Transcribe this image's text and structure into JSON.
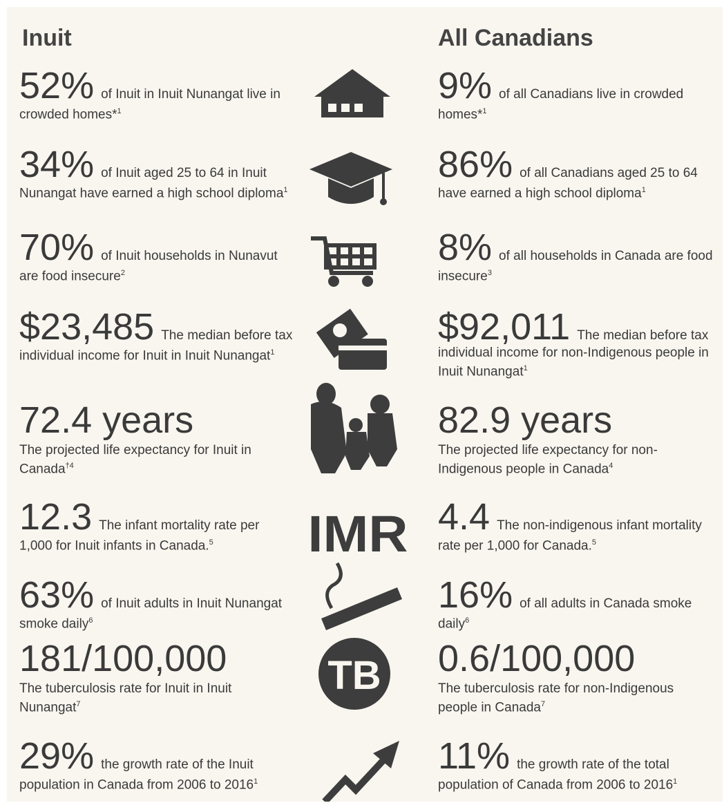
{
  "headers": {
    "left": "Inuit",
    "right": "All Canadians"
  },
  "icons": {
    "imr": "IMR",
    "tb": "TB"
  },
  "rows": [
    {
      "left": {
        "big": "52%",
        "text": "of Inuit in Inuit Nunangat live in crowded homes*",
        "note": "1"
      },
      "right": {
        "big": "9%",
        "text": "of all Canadians live in crowded homes*",
        "note": "1"
      }
    },
    {
      "left": {
        "big": "34%",
        "text": "of Inuit aged 25 to 64 in Inuit Nunangat have earned a high school diploma",
        "note": "1"
      },
      "right": {
        "big": "86%",
        "text": "of all Canadians aged 25 to 64 have earned a high school diploma",
        "note": "1"
      }
    },
    {
      "left": {
        "big": "70%",
        "text": "of Inuit households in Nunavut are food insecure",
        "note": "2"
      },
      "right": {
        "big": "8%",
        "text": "of all households in Canada are food insecure",
        "note": "3"
      }
    },
    {
      "left": {
        "big": "$23,485",
        "text": "The median before tax individual income for Inuit in Inuit Nunangat",
        "note": "1"
      },
      "right": {
        "big": "$92,011",
        "text": "The median before tax individual income for non-Indigenous people in Inuit Nunangat",
        "note": "1"
      }
    },
    {
      "left": {
        "big": "72.4 years",
        "text": "The projected life expectancy for Inuit in Canada",
        "note": "†4"
      },
      "right": {
        "big": "82.9 years",
        "text": "The projected life expectancy for non-Indigenous people in Canada",
        "note": "4"
      }
    },
    {
      "left": {
        "big": "12.3",
        "text": "The infant mortality rate per 1,000 for Inuit infants in Canada.",
        "note": "5"
      },
      "right": {
        "big": "4.4",
        "text": "The non-indigenous infant mortality rate per 1,000 for Canada.",
        "note": "5"
      }
    },
    {
      "left": {
        "big": "63%",
        "text": "of Inuit adults in Inuit Nunangat smoke daily",
        "note": "6"
      },
      "right": {
        "big": "16%",
        "text": "of all adults in Canada smoke daily",
        "note": "6"
      }
    },
    {
      "left": {
        "big": "181/100,000",
        "text": "The tuberculosis rate for Inuit in Inuit Nunangat",
        "note": "7"
      },
      "right": {
        "big": "0.6/100,000",
        "text": "The tuberculosis rate for non-Indigenous people in Canada",
        "note": "7"
      }
    },
    {
      "left": {
        "big": "29%",
        "text": "the growth rate of the Inuit population in Canada from 2006 to 2016",
        "note": "1"
      },
      "right": {
        "big": "11%",
        "text": "the growth rate of the total population of Canada from 2006 to 2016",
        "note": "1"
      }
    }
  ]
}
